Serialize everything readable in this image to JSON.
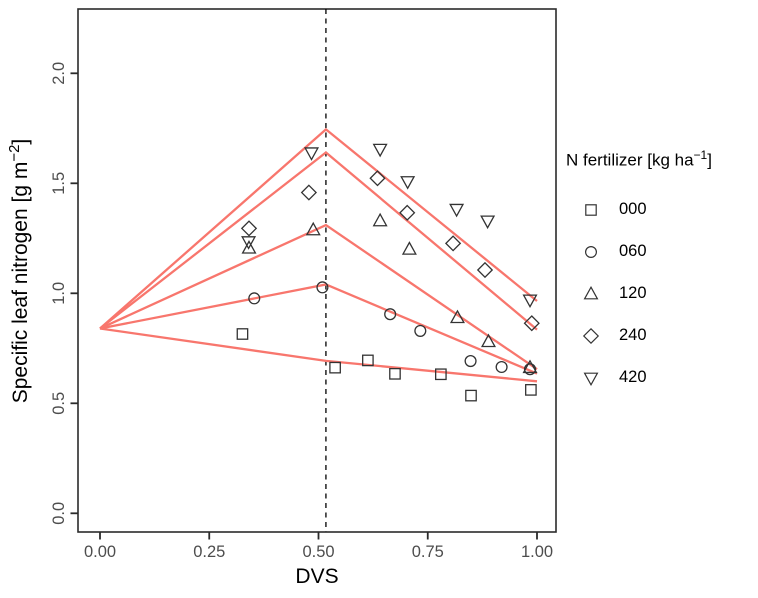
{
  "labels": {
    "xlabel": "DVS",
    "ylabel_main": "Specific leaf nitrogen [g m",
    "ylabel_sup": "−2",
    "ylabel_close": "]"
  },
  "legend": {
    "title_main": "N fertilizer [kg ha",
    "title_sup": "−1",
    "title_close": "]",
    "items": [
      {
        "label": "000",
        "shape": "square"
      },
      {
        "label": "060",
        "shape": "circle"
      },
      {
        "label": "120",
        "shape": "triangle-up"
      },
      {
        "label": "240",
        "shape": "diamond"
      },
      {
        "label": "420",
        "shape": "triangle-down"
      }
    ]
  },
  "chart_data": {
    "type": "scatter",
    "title": "",
    "xlabel": "DVS",
    "ylabel": "Specific leaf nitrogen [g m^-2]",
    "xlim": [
      -0.05,
      1.04
    ],
    "ylim": [
      -0.08,
      2.29
    ],
    "grid": false,
    "legend_position": "right",
    "x_ticks": [
      0.0,
      0.25,
      0.5,
      0.75,
      1.0
    ],
    "x_tick_labels": [
      "0.00",
      "0.25",
      "0.50",
      "0.75",
      "1.00"
    ],
    "y_ticks": [
      0.0,
      0.5,
      1.0,
      1.5,
      2.0
    ],
    "y_tick_labels": [
      "0.0",
      "0.5",
      "1.0",
      "1.5",
      "2.0"
    ],
    "vline_x": 0.517,
    "vline_style": "dashed",
    "line_color": "#F8766D",
    "marker_color": "#333333",
    "series": [
      {
        "name": "000",
        "shape": "square",
        "points": [
          [
            0.326,
            0.815
          ],
          [
            0.538,
            0.662
          ],
          [
            0.613,
            0.695
          ],
          [
            0.675,
            0.634
          ],
          [
            0.78,
            0.632
          ],
          [
            0.849,
            0.535
          ],
          [
            0.986,
            0.561
          ]
        ],
        "line": [
          [
            0.0,
            0.84
          ],
          [
            0.517,
            0.693
          ],
          [
            1.0,
            0.6
          ]
        ]
      },
      {
        "name": "060",
        "shape": "circle",
        "points": [
          [
            0.353,
            0.977
          ],
          [
            0.509,
            1.027
          ],
          [
            0.664,
            0.905
          ],
          [
            0.733,
            0.829
          ],
          [
            0.848,
            0.692
          ],
          [
            0.919,
            0.665
          ],
          [
            0.984,
            0.655
          ]
        ],
        "line": [
          [
            0.0,
            0.84
          ],
          [
            0.517,
            1.04
          ],
          [
            1.0,
            0.635
          ]
        ]
      },
      {
        "name": "120",
        "shape": "triangle-up",
        "points": [
          [
            0.341,
            1.205
          ],
          [
            0.488,
            1.288
          ],
          [
            0.641,
            1.329
          ],
          [
            0.708,
            1.2
          ],
          [
            0.818,
            0.889
          ],
          [
            0.889,
            0.78
          ],
          [
            0.984,
            0.662
          ]
        ],
        "line": [
          [
            0.0,
            0.84
          ],
          [
            0.517,
            1.31
          ],
          [
            1.0,
            0.655
          ]
        ]
      },
      {
        "name": "240",
        "shape": "diamond",
        "points": [
          [
            0.341,
            1.295
          ],
          [
            0.478,
            1.458
          ],
          [
            0.635,
            1.523
          ],
          [
            0.703,
            1.366
          ],
          [
            0.808,
            1.227
          ],
          [
            0.881,
            1.106
          ],
          [
            0.988,
            0.864
          ]
        ],
        "line": [
          [
            0.0,
            0.84
          ],
          [
            0.517,
            1.64
          ],
          [
            1.0,
            0.835
          ]
        ]
      },
      {
        "name": "420",
        "shape": "triangle-down",
        "points": [
          [
            0.34,
            1.235
          ],
          [
            0.484,
            1.639
          ],
          [
            0.641,
            1.655
          ],
          [
            0.704,
            1.508
          ],
          [
            0.816,
            1.382
          ],
          [
            0.887,
            1.329
          ],
          [
            0.984,
            0.97
          ]
        ],
        "line": [
          [
            0.0,
            0.84
          ],
          [
            0.517,
            1.745
          ],
          [
            1.0,
            0.965
          ]
        ]
      }
    ]
  }
}
